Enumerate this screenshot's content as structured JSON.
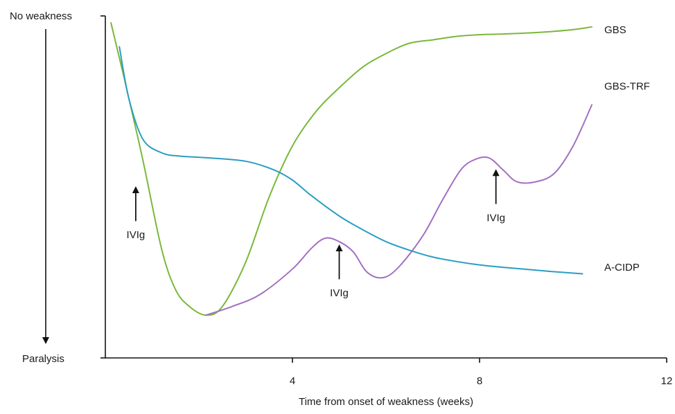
{
  "chart_data": {
    "type": "line",
    "xlabel": "Time from onset of weakness (weeks)",
    "xlim": [
      0,
      12
    ],
    "x_ticks": [
      4,
      8,
      12
    ],
    "x_tick_labels": [
      "4",
      "8",
      "12"
    ],
    "ylim": [
      0,
      100
    ],
    "y_top_label": "No weakness",
    "y_bottom_label": "Paralysis",
    "grid": false,
    "series": [
      {
        "name": "GBS",
        "color": "#7ab83a",
        "points": [
          [
            0.12,
            98
          ],
          [
            0.4,
            82
          ],
          [
            0.8,
            58
          ],
          [
            1.2,
            32
          ],
          [
            1.5,
            20
          ],
          [
            1.8,
            15
          ],
          [
            2.15,
            12.5
          ],
          [
            2.5,
            15
          ],
          [
            3.0,
            28
          ],
          [
            3.5,
            47
          ],
          [
            4.0,
            62
          ],
          [
            4.5,
            72
          ],
          [
            5.0,
            79
          ],
          [
            5.5,
            85
          ],
          [
            6.0,
            89
          ],
          [
            6.5,
            92
          ],
          [
            7.0,
            93
          ],
          [
            7.5,
            94
          ],
          [
            8.0,
            94.5
          ],
          [
            8.5,
            94.7
          ],
          [
            9.0,
            95
          ],
          [
            9.5,
            95.4
          ],
          [
            10.0,
            96
          ],
          [
            10.4,
            96.8
          ]
        ]
      },
      {
        "name": "GBS-TRF",
        "color": "#a270c0",
        "points": [
          [
            2.15,
            12.5
          ],
          [
            2.7,
            15
          ],
          [
            3.3,
            18.5
          ],
          [
            4.0,
            26
          ],
          [
            4.4,
            32
          ],
          [
            4.7,
            35
          ],
          [
            5.0,
            34
          ],
          [
            5.3,
            31
          ],
          [
            5.6,
            25
          ],
          [
            5.95,
            23.5
          ],
          [
            6.3,
            27
          ],
          [
            6.8,
            36
          ],
          [
            7.2,
            46
          ],
          [
            7.6,
            55
          ],
          [
            7.9,
            58
          ],
          [
            8.2,
            58.5
          ],
          [
            8.5,
            55
          ],
          [
            8.8,
            51.5
          ],
          [
            9.2,
            51.5
          ],
          [
            9.6,
            54
          ],
          [
            10.0,
            62
          ],
          [
            10.4,
            74
          ]
        ]
      },
      {
        "name": "A-CIDP",
        "color": "#2a9dc2",
        "points": [
          [
            0.3,
            91
          ],
          [
            0.5,
            76
          ],
          [
            0.8,
            64
          ],
          [
            1.2,
            60
          ],
          [
            1.6,
            59
          ],
          [
            2.2,
            58.5
          ],
          [
            3.0,
            57.5
          ],
          [
            3.6,
            55
          ],
          [
            4.0,
            52
          ],
          [
            4.4,
            47.5
          ],
          [
            5.0,
            41.5
          ],
          [
            5.5,
            37.5
          ],
          [
            6.0,
            34
          ],
          [
            6.5,
            31.5
          ],
          [
            7.0,
            29.5
          ],
          [
            7.5,
            28.2
          ],
          [
            8.0,
            27.2
          ],
          [
            8.5,
            26.5
          ],
          [
            9.0,
            25.9
          ],
          [
            9.5,
            25.3
          ],
          [
            10.0,
            24.8
          ],
          [
            10.2,
            24.6
          ]
        ]
      }
    ],
    "annotations": [
      {
        "text": "IVIg",
        "x": 0.65,
        "arrow_bottom": 40,
        "arrow_top": 50,
        "text_y": 35
      },
      {
        "text": "IVIg",
        "x": 5.0,
        "arrow_bottom": 23,
        "arrow_top": 33,
        "text_y": 18
      },
      {
        "text": "IVIg",
        "x": 8.35,
        "arrow_bottom": 45,
        "arrow_top": 55,
        "text_y": 40
      }
    ],
    "series_labels": [
      {
        "text": "GBS",
        "y": 96
      },
      {
        "text": "GBS-TRF",
        "y": 79.5
      },
      {
        "text": "A-CIDP",
        "y": 26.5
      }
    ]
  }
}
